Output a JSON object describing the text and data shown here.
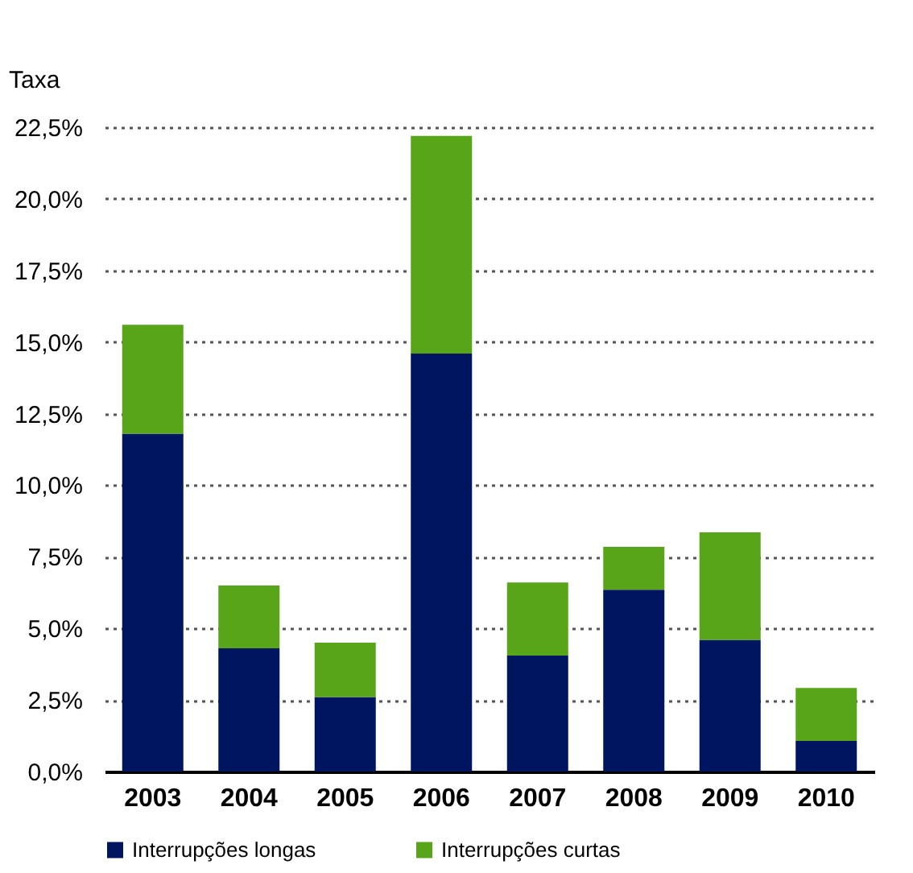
{
  "chart_data": {
    "type": "bar",
    "stacked": true,
    "ylabel": "Taxa",
    "categories": [
      "2003",
      "2004",
      "2005",
      "2006",
      "2007",
      "2008",
      "2009",
      "2010"
    ],
    "series": [
      {
        "name": "Interrupções longas",
        "color": "#001560",
        "values": [
          11.8,
          4.3,
          2.6,
          14.6,
          4.05,
          6.35,
          4.6,
          1.07
        ]
      },
      {
        "name": "Interrupções curtas",
        "color": "#58a519",
        "values": [
          3.8,
          2.2,
          1.9,
          7.6,
          2.55,
          1.5,
          3.75,
          1.85
        ]
      }
    ],
    "ylim": [
      0,
      22.5
    ],
    "yticks": [
      {
        "value": 0,
        "label": "0,0%"
      },
      {
        "value": 2.5,
        "label": "2,5%"
      },
      {
        "value": 5,
        "label": "5,0%"
      },
      {
        "value": 7.5,
        "label": "7,5%"
      },
      {
        "value": 10,
        "label": "10,0%"
      },
      {
        "value": 12.5,
        "label": "12,5%"
      },
      {
        "value": 15,
        "label": "15,0%"
      },
      {
        "value": 17.5,
        "label": "17,5%"
      },
      {
        "value": 20,
        "label": "20,0%"
      },
      {
        "value": 22.5,
        "label": "22,5%"
      }
    ],
    "grid": "y",
    "legend": "bottom"
  }
}
